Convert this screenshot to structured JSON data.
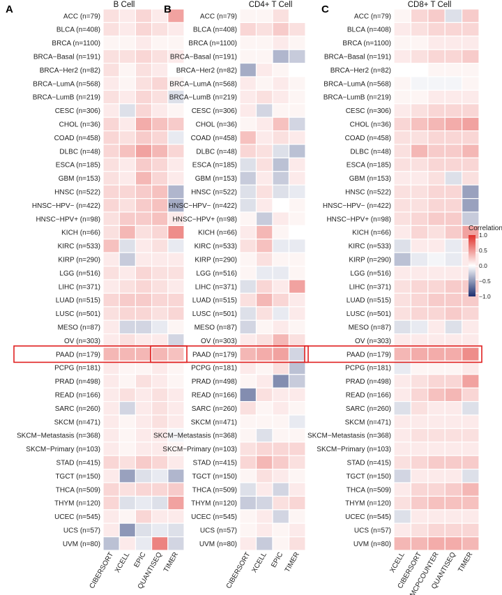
{
  "chart_data": [
    {
      "type": "heatmap",
      "panel": "A",
      "title": "B Cell",
      "rows": [
        "ACC (n=79)",
        "BLCA (n=408)",
        "BRCA (n=1100)",
        "BRCA−Basal (n=191)",
        "BRCA−Her2 (n=82)",
        "BRCA−LumA (n=568)",
        "BRCA−LumB (n=219)",
        "CESC (n=306)",
        "CHOL (n=36)",
        "COAD (n=458)",
        "DLBC (n=48)",
        "ESCA (n=185)",
        "GBM (n=153)",
        "HNSC (n=522)",
        "HNSC−HPV− (n=422)",
        "HNSC−HPV+ (n=98)",
        "KICH (n=66)",
        "KIRC (n=533)",
        "KIRP (n=290)",
        "LGG (n=516)",
        "LIHC (n=371)",
        "LUAD (n=515)",
        "LUSC (n=501)",
        "MESO (n=87)",
        "OV (n=303)",
        "PAAD (n=179)",
        "PCPG (n=181)",
        "PRAD (n=498)",
        "READ (n=166)",
        "SARC (n=260)",
        "SKCM (n=471)",
        "SKCM−Metastasis (n=368)",
        "SKCM−Primary (n=103)",
        "STAD (n=415)",
        "TGCT (n=150)",
        "THCA (n=509)",
        "THYM (n=120)",
        "UCEC (n=545)",
        "UCS (n=57)",
        "UVM (n=80)"
      ],
      "columns": [
        "CIBERSORT",
        "XCELL",
        "EPIC",
        "QUANTISEQ",
        "TIMER"
      ],
      "values": [
        [
          0.15,
          0.1,
          0.2,
          0.1,
          0.45
        ],
        [
          0.15,
          0.1,
          0.2,
          0.15,
          0.1
        ],
        [
          0.05,
          0.05,
          0.1,
          0.05,
          0.05
        ],
        [
          0.15,
          0.15,
          0.2,
          0.15,
          0.1
        ],
        [
          0.15,
          0.05,
          0.15,
          0.1,
          0.0
        ],
        [
          0.1,
          0.05,
          0.15,
          0.2,
          0.05
        ],
        [
          0.15,
          0.1,
          0.2,
          0.15,
          -0.15
        ],
        [
          0.1,
          -0.15,
          0.2,
          0.1,
          0.05
        ],
        [
          0.2,
          0.1,
          0.4,
          0.3,
          0.25
        ],
        [
          0.2,
          0.15,
          0.25,
          0.2,
          -0.1
        ],
        [
          0.2,
          0.3,
          0.45,
          0.35,
          0.2
        ],
        [
          0.15,
          0.1,
          0.25,
          0.2,
          0.1
        ],
        [
          0.15,
          0.1,
          0.35,
          0.2,
          0.1
        ],
        [
          0.2,
          0.2,
          0.25,
          0.3,
          -0.35
        ],
        [
          0.2,
          0.15,
          0.25,
          0.3,
          -0.4
        ],
        [
          0.15,
          0.25,
          0.25,
          0.3,
          0.1
        ],
        [
          0.15,
          0.35,
          0.15,
          0.2,
          0.55
        ],
        [
          0.3,
          -0.15,
          0.1,
          0.15,
          -0.1
        ],
        [
          0.1,
          -0.25,
          0.1,
          0.1,
          0.1
        ],
        [
          0.15,
          0.1,
          0.2,
          0.15,
          0.15
        ],
        [
          0.1,
          0.15,
          0.2,
          0.15,
          0.1
        ],
        [
          0.2,
          0.25,
          0.25,
          0.2,
          0.2
        ],
        [
          0.15,
          0.2,
          0.2,
          0.15,
          0.2
        ],
        [
          0.1,
          -0.2,
          -0.2,
          -0.1,
          0.05
        ],
        [
          0.1,
          0.15,
          0.1,
          0.1,
          -0.2
        ],
        [
          0.35,
          0.35,
          0.35,
          0.35,
          0.3
        ],
        [
          0.1,
          0.05,
          0.05,
          0.1,
          0.05
        ],
        [
          0.1,
          0.05,
          0.15,
          0.1,
          0.05
        ],
        [
          0.1,
          0.15,
          0.1,
          0.15,
          0.1
        ],
        [
          0.1,
          -0.2,
          0.1,
          0.15,
          0.1
        ],
        [
          0.1,
          0.05,
          0.1,
          0.15,
          0.1
        ],
        [
          0.1,
          0.05,
          0.1,
          0.1,
          -0.05
        ],
        [
          0.1,
          0.05,
          0.1,
          0.1,
          0.05
        ],
        [
          0.2,
          0.15,
          0.25,
          0.2,
          0.1
        ],
        [
          0.1,
          -0.45,
          -0.15,
          -0.1,
          -0.35
        ],
        [
          0.2,
          0.15,
          0.2,
          0.2,
          0.25
        ],
        [
          0.2,
          -0.15,
          -0.1,
          -0.15,
          0.45
        ],
        [
          0.1,
          0.05,
          0.2,
          0.1,
          0.1
        ],
        [
          0.1,
          -0.5,
          -0.15,
          -0.1,
          -0.15
        ],
        [
          -0.3,
          0.1,
          -0.1,
          0.6,
          -0.2
        ]
      ]
    },
    {
      "type": "heatmap",
      "panel": "B",
      "title": "CD4+ T Cell",
      "rows": [
        "ACC (n=79)",
        "BLCA (n=408)",
        "BRCA (n=1100)",
        "BRCA−Basal (n=191)",
        "BRCA−Her2 (n=82)",
        "BRCA−LumA (n=568)",
        "BRCA−LumB (n=219)",
        "CESC (n=306)",
        "CHOL (n=36)",
        "COAD (n=458)",
        "DLBC (n=48)",
        "ESCA (n=185)",
        "GBM (n=153)",
        "HNSC (n=522)",
        "HNSC−HPV− (n=422)",
        "HNSC−HPV+ (n=98)",
        "KICH (n=66)",
        "KIRC (n=533)",
        "KIRP (n=290)",
        "LGG (n=516)",
        "LIHC (n=371)",
        "LUAD (n=515)",
        "LUSC (n=501)",
        "MESO (n=87)",
        "OV (n=303)",
        "PAAD (n=179)",
        "PCPG (n=181)",
        "PRAD (n=498)",
        "READ (n=166)",
        "SARC (n=260)",
        "SKCM (n=471)",
        "SKCM−Metastasis (n=368)",
        "SKCM−Primary (n=103)",
        "STAD (n=415)",
        "TGCT (n=150)",
        "THCA (n=509)",
        "THYM (n=120)",
        "UCEC (n=545)",
        "UCS (n=57)",
        "UVM (n=80)"
      ],
      "columns": [
        "CIBERSORT",
        "XCELL",
        "EPIC",
        "TIMER"
      ],
      "values": [
        [
          0.05,
          0.05,
          0.15,
          0.0
        ],
        [
          0.2,
          0.15,
          0.25,
          0.15
        ],
        [
          0.05,
          0.05,
          0.1,
          0.05
        ],
        [
          0.05,
          0.05,
          -0.35,
          -0.25
        ],
        [
          -0.4,
          0.1,
          0.05,
          0.0
        ],
        [
          0.1,
          0.05,
          0.1,
          0.05
        ],
        [
          0.1,
          0.15,
          0.1,
          0.05
        ],
        [
          0.1,
          -0.2,
          0.05,
          0.05
        ],
        [
          0.05,
          0.1,
          0.3,
          -0.2
        ],
        [
          0.3,
          0.1,
          0.15,
          0.1
        ],
        [
          0.2,
          0.15,
          -0.15,
          -0.3
        ],
        [
          -0.15,
          0.15,
          -0.3,
          0.1
        ],
        [
          -0.25,
          0.1,
          -0.25,
          0.1
        ],
        [
          -0.15,
          0.15,
          -0.15,
          -0.1
        ],
        [
          -0.15,
          0.1,
          0.0,
          0.05
        ],
        [
          0.05,
          -0.25,
          0.1,
          0.05
        ],
        [
          0.1,
          0.35,
          0.05,
          0.0
        ],
        [
          0.15,
          0.3,
          -0.1,
          -0.1
        ],
        [
          0.05,
          0.15,
          0.05,
          0.05
        ],
        [
          0.05,
          -0.1,
          -0.1,
          0.05
        ],
        [
          -0.15,
          0.2,
          0.1,
          0.45
        ],
        [
          0.15,
          0.35,
          0.2,
          0.1
        ],
        [
          -0.15,
          0.15,
          -0.1,
          0.1
        ],
        [
          -0.2,
          0.05,
          0.1,
          0.05
        ],
        [
          0.1,
          0.15,
          0.35,
          0.15
        ],
        [
          0.35,
          0.4,
          0.45,
          -0.2
        ],
        [
          0.1,
          0.05,
          0.15,
          -0.3
        ],
        [
          0.05,
          0.1,
          -0.55,
          -0.25
        ],
        [
          -0.55,
          0.15,
          0.1,
          0.1
        ],
        [
          0.15,
          0.05,
          0.1,
          0.05
        ],
        [
          0.05,
          0.05,
          0.05,
          -0.1
        ],
        [
          0.05,
          -0.15,
          0.05,
          0.05
        ],
        [
          0.15,
          0.2,
          0.2,
          0.2
        ],
        [
          0.2,
          0.35,
          0.25,
          0.15
        ],
        [
          0.05,
          0.15,
          0.1,
          0.05
        ],
        [
          -0.15,
          0.1,
          -0.2,
          0.1
        ],
        [
          -0.25,
          -0.2,
          0.15,
          0.2
        ],
        [
          0.05,
          0.1,
          -0.2,
          0.05
        ],
        [
          0.05,
          0.1,
          0.05,
          0.1
        ],
        [
          0.1,
          -0.25,
          0.05,
          0.15
        ]
      ]
    },
    {
      "type": "heatmap",
      "panel": "C",
      "title": "CD8+ T Cell",
      "rows": [
        "ACC (n=79)",
        "BLCA (n=408)",
        "BRCA (n=1100)",
        "BRCA−Basal (n=191)",
        "BRCA−Her2 (n=82)",
        "BRCA−LumA (n=568)",
        "BRCA−LumB (n=219)",
        "CESC (n=306)",
        "CHOL (n=36)",
        "COAD (n=458)",
        "DLBC (n=48)",
        "ESCA (n=185)",
        "GBM (n=153)",
        "HNSC (n=522)",
        "HNSC−HPV− (n=422)",
        "HNSC−HPV+ (n=98)",
        "KICH (n=66)",
        "KIRC (n=533)",
        "KIRP (n=290)",
        "LGG (n=516)",
        "LIHC (n=371)",
        "LUAD (n=515)",
        "LUSC (n=501)",
        "MESO (n=87)",
        "OV (n=303)",
        "PAAD (n=179)",
        "PCPG (n=181)",
        "PRAD (n=498)",
        "READ (n=166)",
        "SARC (n=260)",
        "SKCM (n=471)",
        "SKCM−Metastasis (n=368)",
        "SKCM−Primary (n=103)",
        "STAD (n=415)",
        "TGCT (n=150)",
        "THCA (n=509)",
        "THYM (n=120)",
        "UCEC (n=545)",
        "UCS (n=57)",
        "UVM (n=80)"
      ],
      "columns": [
        "XCELL",
        "CIBERSORT",
        "MCPCOUNTER",
        "QUANTISEQ",
        "TIMER"
      ],
      "values": [
        [
          0.05,
          0.2,
          0.25,
          -0.15,
          0.25
        ],
        [
          0.1,
          0.15,
          0.2,
          0.2,
          0.2
        ],
        [
          0.05,
          0.05,
          0.1,
          0.1,
          0.1
        ],
        [
          0.1,
          0.15,
          0.2,
          0.2,
          0.25
        ],
        [
          0.0,
          0.0,
          0.05,
          0.05,
          0.05
        ],
        [
          0.05,
          -0.05,
          -0.05,
          -0.05,
          0.05
        ],
        [
          0.05,
          0.05,
          0.1,
          0.1,
          0.1
        ],
        [
          0.1,
          0.15,
          0.2,
          0.2,
          0.2
        ],
        [
          0.2,
          0.3,
          0.35,
          0.4,
          0.45
        ],
        [
          0.15,
          0.15,
          0.2,
          0.2,
          0.2
        ],
        [
          0.15,
          0.35,
          0.25,
          0.25,
          0.35
        ],
        [
          0.15,
          0.15,
          0.2,
          0.2,
          0.2
        ],
        [
          0.1,
          0.1,
          0.15,
          -0.15,
          0.15
        ],
        [
          0.15,
          0.15,
          0.2,
          0.2,
          -0.45
        ],
        [
          0.15,
          0.15,
          0.2,
          0.2,
          -0.45
        ],
        [
          0.15,
          0.2,
          0.25,
          0.25,
          -0.25
        ],
        [
          0.1,
          0.2,
          0.15,
          0.25,
          0.45
        ],
        [
          -0.15,
          0.1,
          0.1,
          -0.1,
          0.15
        ],
        [
          -0.3,
          -0.1,
          -0.05,
          -0.1,
          0.1
        ],
        [
          0.1,
          0.1,
          0.1,
          0.1,
          0.1
        ],
        [
          0.15,
          0.2,
          0.2,
          0.25,
          0.25
        ],
        [
          0.15,
          0.2,
          0.25,
          0.25,
          0.25
        ],
        [
          0.15,
          0.2,
          0.2,
          0.25,
          0.2
        ],
        [
          -0.15,
          -0.1,
          0.1,
          -0.15,
          0.1
        ],
        [
          0.1,
          0.1,
          0.1,
          0.1,
          0.1
        ],
        [
          0.35,
          0.4,
          0.4,
          0.4,
          0.55
        ],
        [
          -0.1,
          0.05,
          0.05,
          0.05,
          0.1
        ],
        [
          0.1,
          0.15,
          0.2,
          0.2,
          0.45
        ],
        [
          0.1,
          0.2,
          0.3,
          0.35,
          0.2
        ],
        [
          -0.15,
          0.15,
          0.1,
          0.1,
          -0.15
        ],
        [
          0.1,
          0.1,
          0.1,
          0.1,
          0.1
        ],
        [
          0.1,
          0.15,
          0.15,
          0.15,
          0.15
        ],
        [
          0.1,
          0.1,
          0.1,
          0.1,
          0.1
        ],
        [
          0.15,
          0.2,
          0.25,
          0.25,
          0.25
        ],
        [
          -0.2,
          0.1,
          0.1,
          0.1,
          -0.15
        ],
        [
          0.1,
          0.2,
          0.2,
          0.25,
          0.35
        ],
        [
          0.15,
          0.25,
          0.3,
          0.3,
          0.3
        ],
        [
          -0.15,
          0.1,
          0.1,
          0.1,
          0.1
        ],
        [
          0.1,
          0.15,
          0.2,
          0.2,
          0.2
        ],
        [
          0.35,
          0.35,
          0.4,
          0.4,
          0.35
        ]
      ]
    }
  ],
  "legend": {
    "title": "Correlation",
    "ticks": [
      "1.0",
      "0.5",
      "0.0",
      "−0.5",
      "−1.0"
    ],
    "range": [
      -1.0,
      1.0
    ]
  },
  "highlight_row": "PAAD (n=179)",
  "colors": {
    "negative": "#1d2f6f",
    "neutral": "#ffffff",
    "positive": "#e0302b",
    "highlight": "#e02020"
  }
}
